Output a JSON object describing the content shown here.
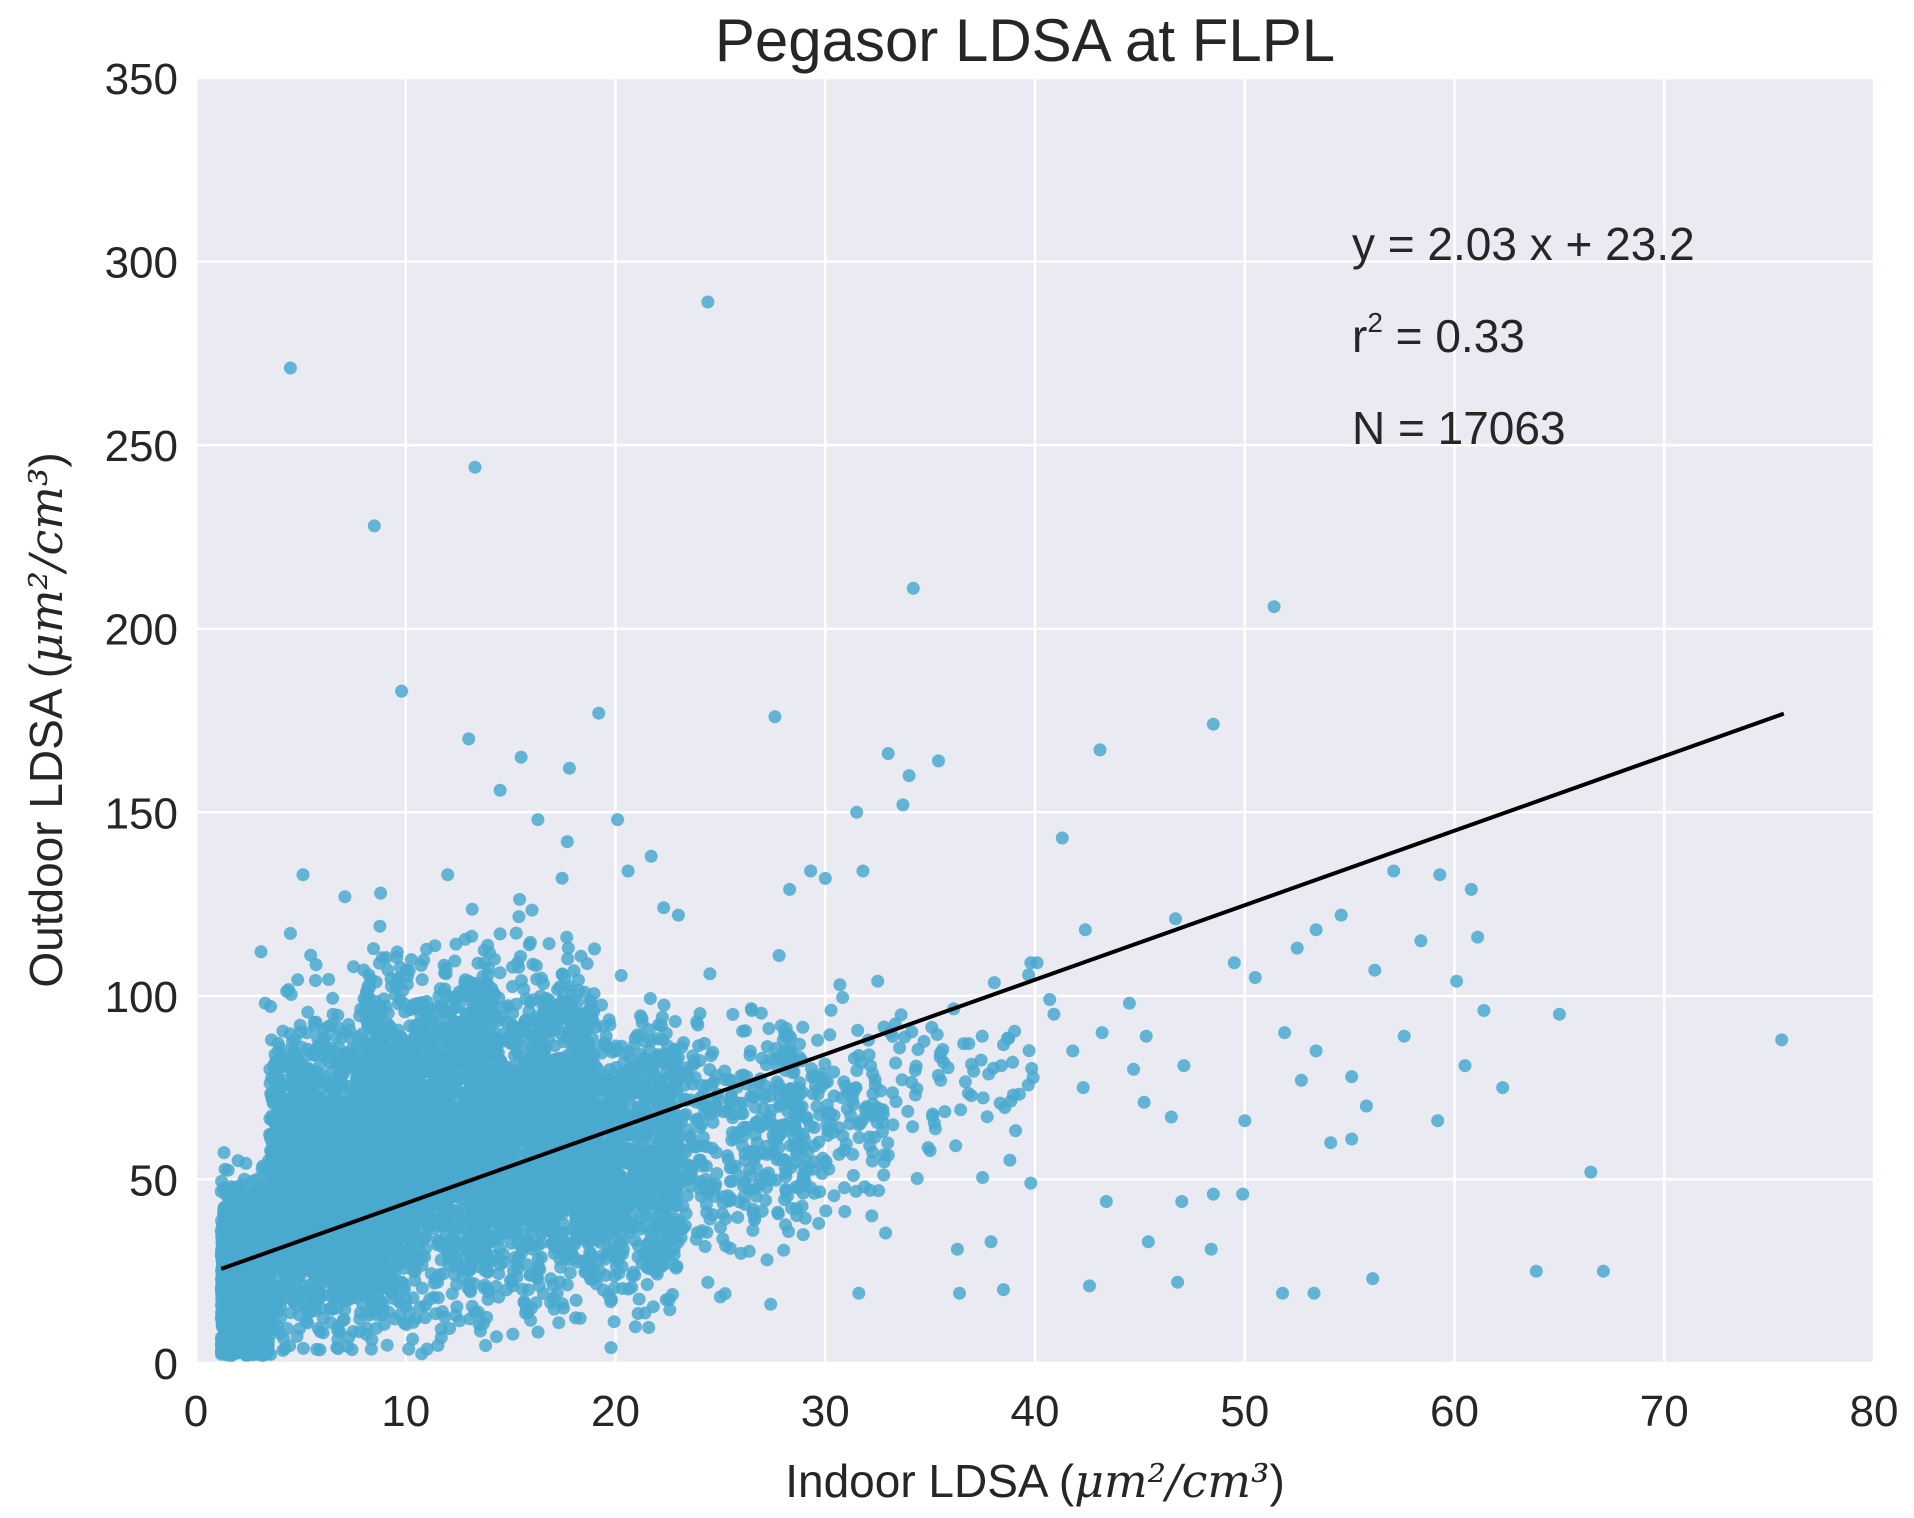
{
  "chart_data": {
    "type": "scatter",
    "title": "Pegasor LDSA at FLPL",
    "xlabel": {
      "prefix": "Indoor LDSA (",
      "unit_html": "μm²/cm³",
      "suffix": ")"
    },
    "ylabel": {
      "prefix": "Outdoor LDSA (",
      "unit_html": "μm²/cm³",
      "suffix": ")"
    },
    "xlim": [
      0,
      80
    ],
    "ylim": [
      0,
      350
    ],
    "xticks": [
      "0",
      "10",
      "20",
      "30",
      "40",
      "50",
      "60",
      "70",
      "80"
    ],
    "yticks": [
      "0",
      "50",
      "100",
      "150",
      "200",
      "250",
      "300",
      "350"
    ],
    "grid": true,
    "background": "#eaeaf2",
    "point_color": "#4aa9cf",
    "line_color": "#000000",
    "fit_line": {
      "slope": 2.03,
      "intercept": 23.2,
      "x_range": [
        1.2,
        75.7
      ]
    },
    "annotations": {
      "equation": "y = 2.03 x + 23.2",
      "r2_prefix": "r",
      "r2_sup": "2",
      "r2_rest": " = 0.33",
      "n": "N = 17063"
    },
    "outliers": [
      [
        4.5,
        271
      ],
      [
        24.4,
        289
      ],
      [
        13.3,
        244
      ],
      [
        8.5,
        228
      ],
      [
        34.2,
        211
      ],
      [
        51.4,
        206
      ],
      [
        9.8,
        183
      ],
      [
        19.2,
        177
      ],
      [
        27.6,
        176
      ],
      [
        48.5,
        174
      ],
      [
        13,
        170
      ],
      [
        43.1,
        167
      ],
      [
        33,
        166
      ],
      [
        35.4,
        164
      ],
      [
        17.8,
        162
      ],
      [
        15.5,
        165
      ],
      [
        34,
        160
      ],
      [
        31.5,
        150
      ],
      [
        33.7,
        152
      ],
      [
        41.3,
        143
      ],
      [
        57.1,
        134
      ],
      [
        59.3,
        133
      ],
      [
        60.8,
        129
      ],
      [
        5.1,
        133
      ],
      [
        12,
        133
      ],
      [
        46.7,
        121
      ],
      [
        54.6,
        122
      ],
      [
        61.1,
        116
      ],
      [
        75.6,
        88
      ],
      [
        65,
        95
      ],
      [
        66.5,
        52
      ],
      [
        63.9,
        25
      ],
      [
        67.1,
        25
      ],
      [
        56.1,
        23
      ],
      [
        53.3,
        19
      ],
      [
        51.8,
        19
      ],
      [
        42.6,
        21
      ],
      [
        46.8,
        22
      ],
      [
        38.5,
        20
      ],
      [
        36.4,
        19
      ],
      [
        31.6,
        19
      ],
      [
        27.4,
        16
      ],
      [
        25,
        18
      ],
      [
        36.3,
        31
      ],
      [
        37.9,
        33
      ],
      [
        48.4,
        31
      ],
      [
        45.4,
        33
      ],
      [
        60.5,
        81
      ],
      [
        59.2,
        66
      ],
      [
        62.3,
        75
      ],
      [
        55.1,
        61
      ],
      [
        53.4,
        85
      ],
      [
        51.9,
        90
      ],
      [
        50,
        66
      ],
      [
        49.9,
        46
      ],
      [
        48.5,
        46
      ],
      [
        47,
        44
      ],
      [
        43.4,
        44
      ],
      [
        39.8,
        49
      ],
      [
        44.7,
        80
      ],
      [
        44.5,
        98
      ],
      [
        42.4,
        118
      ],
      [
        40.9,
        95
      ],
      [
        39.8,
        109
      ],
      [
        38.4,
        81
      ],
      [
        36.6,
        87
      ],
      [
        35.5,
        77
      ],
      [
        34.3,
        73
      ],
      [
        33.1,
        90
      ],
      [
        32.5,
        104
      ],
      [
        29.3,
        134
      ],
      [
        30,
        132
      ],
      [
        31.8,
        134
      ],
      [
        30.7,
        103
      ],
      [
        28.3,
        129
      ],
      [
        28,
        88
      ],
      [
        26.5,
        96
      ],
      [
        27.8,
        111
      ],
      [
        24.5,
        106
      ],
      [
        23,
        122
      ],
      [
        22.3,
        124
      ],
      [
        20.6,
        134
      ],
      [
        21.7,
        138
      ],
      [
        20.1,
        148
      ],
      [
        17.7,
        142
      ],
      [
        16.3,
        148
      ],
      [
        14.5,
        156
      ],
      [
        8.8,
        128
      ],
      [
        7.1,
        127
      ],
      [
        4.5,
        117
      ],
      [
        3.1,
        112
      ],
      [
        3.3,
        98
      ],
      [
        3.6,
        88
      ],
      [
        56.2,
        107
      ],
      [
        58.4,
        115
      ],
      [
        60.1,
        104
      ],
      [
        61.4,
        96
      ],
      [
        57.6,
        89
      ],
      [
        54.1,
        60
      ],
      [
        52.7,
        77
      ],
      [
        40.1,
        109
      ],
      [
        40.7,
        99
      ],
      [
        41.8,
        85
      ],
      [
        42.3,
        75
      ],
      [
        45.3,
        89
      ],
      [
        47.1,
        81
      ],
      [
        49.5,
        109
      ],
      [
        50.5,
        105
      ],
      [
        52.5,
        113
      ],
      [
        53.4,
        118
      ],
      [
        55.1,
        78
      ],
      [
        55.8,
        70
      ],
      [
        46.5,
        67
      ],
      [
        45.2,
        71
      ],
      [
        43.2,
        90
      ]
    ]
  }
}
